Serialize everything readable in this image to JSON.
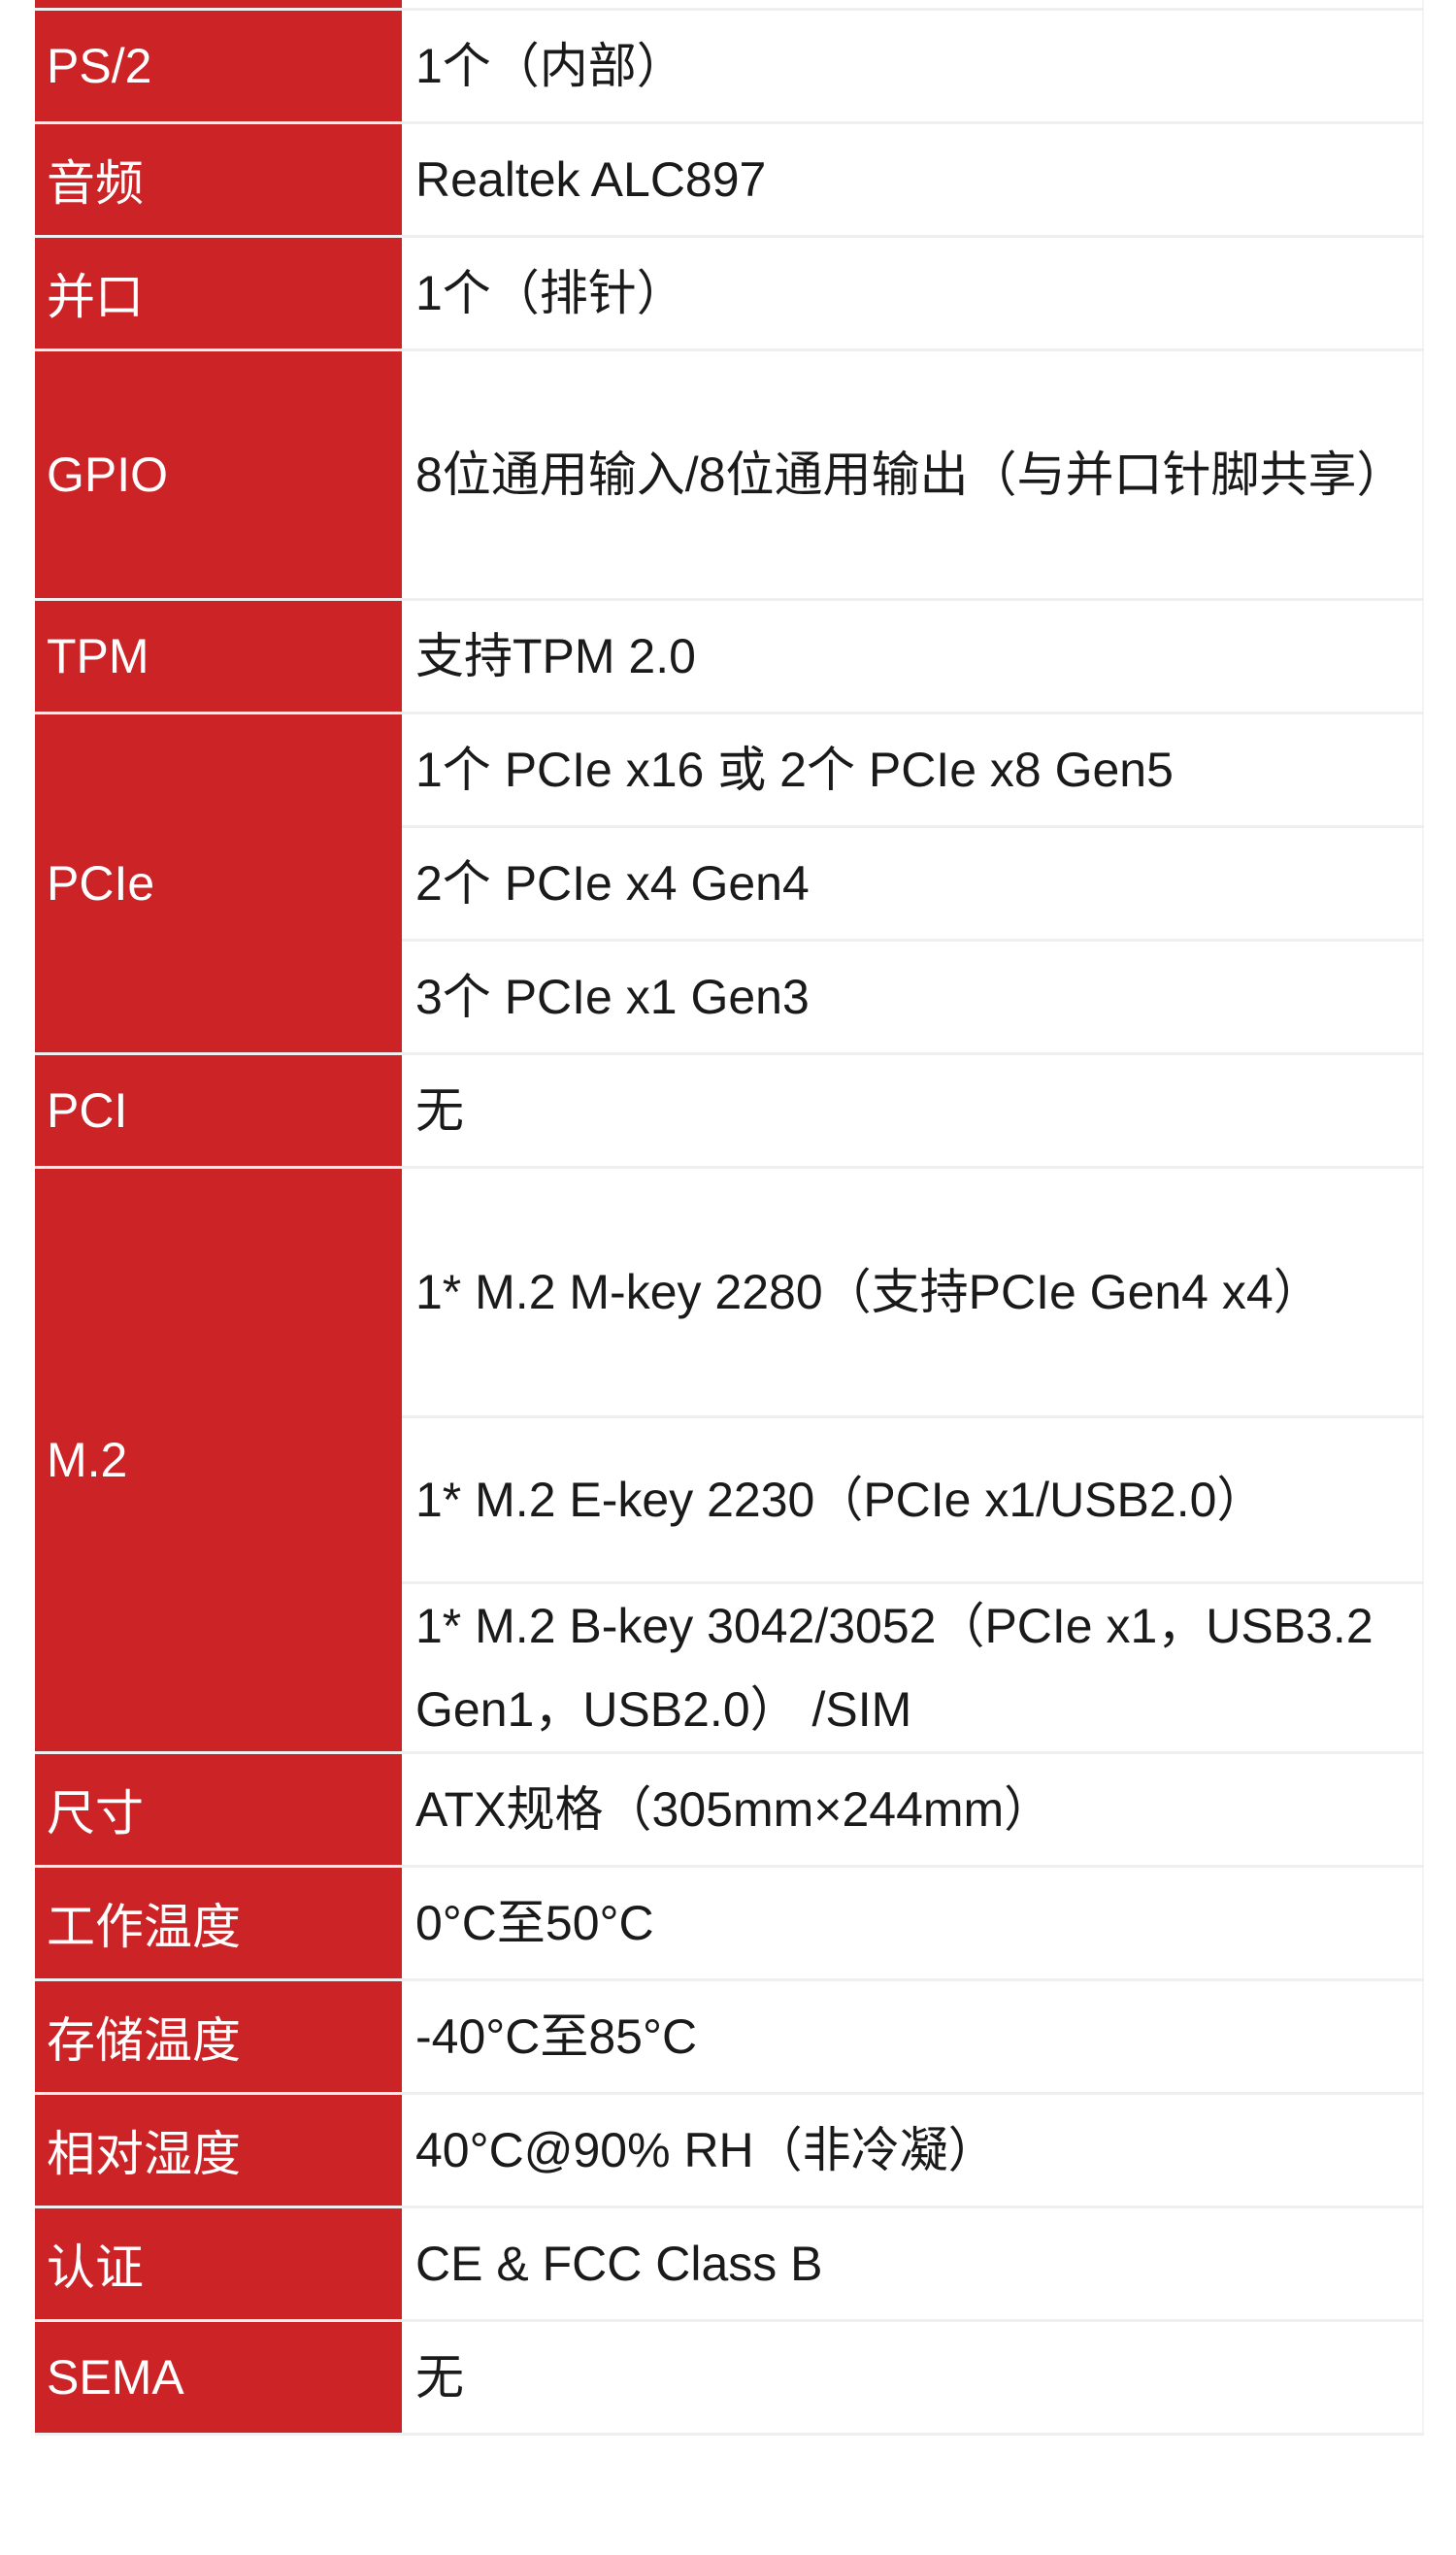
{
  "colors": {
    "label_bg": "#cc2327",
    "label_text": "#ffffff",
    "value_text": "#1a1a1a",
    "divider": "#efefef"
  },
  "rows": [
    {
      "label": "PS/2",
      "values": [
        "1个（内部）"
      ]
    },
    {
      "label": "音频",
      "values": [
        "Realtek ALC897"
      ]
    },
    {
      "label": "并口",
      "values": [
        "1个（排针）"
      ]
    },
    {
      "label": "GPIO",
      "values": [
        "8位通用输入/8位通用输出（与并口针脚共享）"
      ]
    },
    {
      "label": "TPM",
      "values": [
        "支持TPM 2.0"
      ]
    },
    {
      "label": "PCIe",
      "values": [
        "1个 PCIe x16 或 2个 PCIe x8 Gen5",
        "2个 PCIe x4 Gen4",
        "3个 PCIe x1 Gen3"
      ]
    },
    {
      "label": "PCI",
      "values": [
        "无"
      ]
    },
    {
      "label": "M.2",
      "values": [
        "1* M.2 M-key 2280（支持PCIe Gen4 x4）",
        "1* M.2 E-key 2230（PCIe x1/USB2.0）",
        "1* M.2 B-key 3042/3052（PCIe x1，USB3.2 Gen1，USB2.0） /SIM"
      ]
    },
    {
      "label": "尺寸",
      "values": [
        "ATX规格（305mm×244mm）"
      ]
    },
    {
      "label": "工作温度",
      "values": [
        "0°C至50°C"
      ]
    },
    {
      "label": "存储温度",
      "values": [
        "-40°C至85°C"
      ]
    },
    {
      "label": "相对湿度",
      "values": [
        "40°C@90% RH（非冷凝）"
      ]
    },
    {
      "label": "认证",
      "values": [
        "CE & FCC Class B"
      ]
    },
    {
      "label": "SEMA",
      "values": [
        "无"
      ]
    }
  ]
}
